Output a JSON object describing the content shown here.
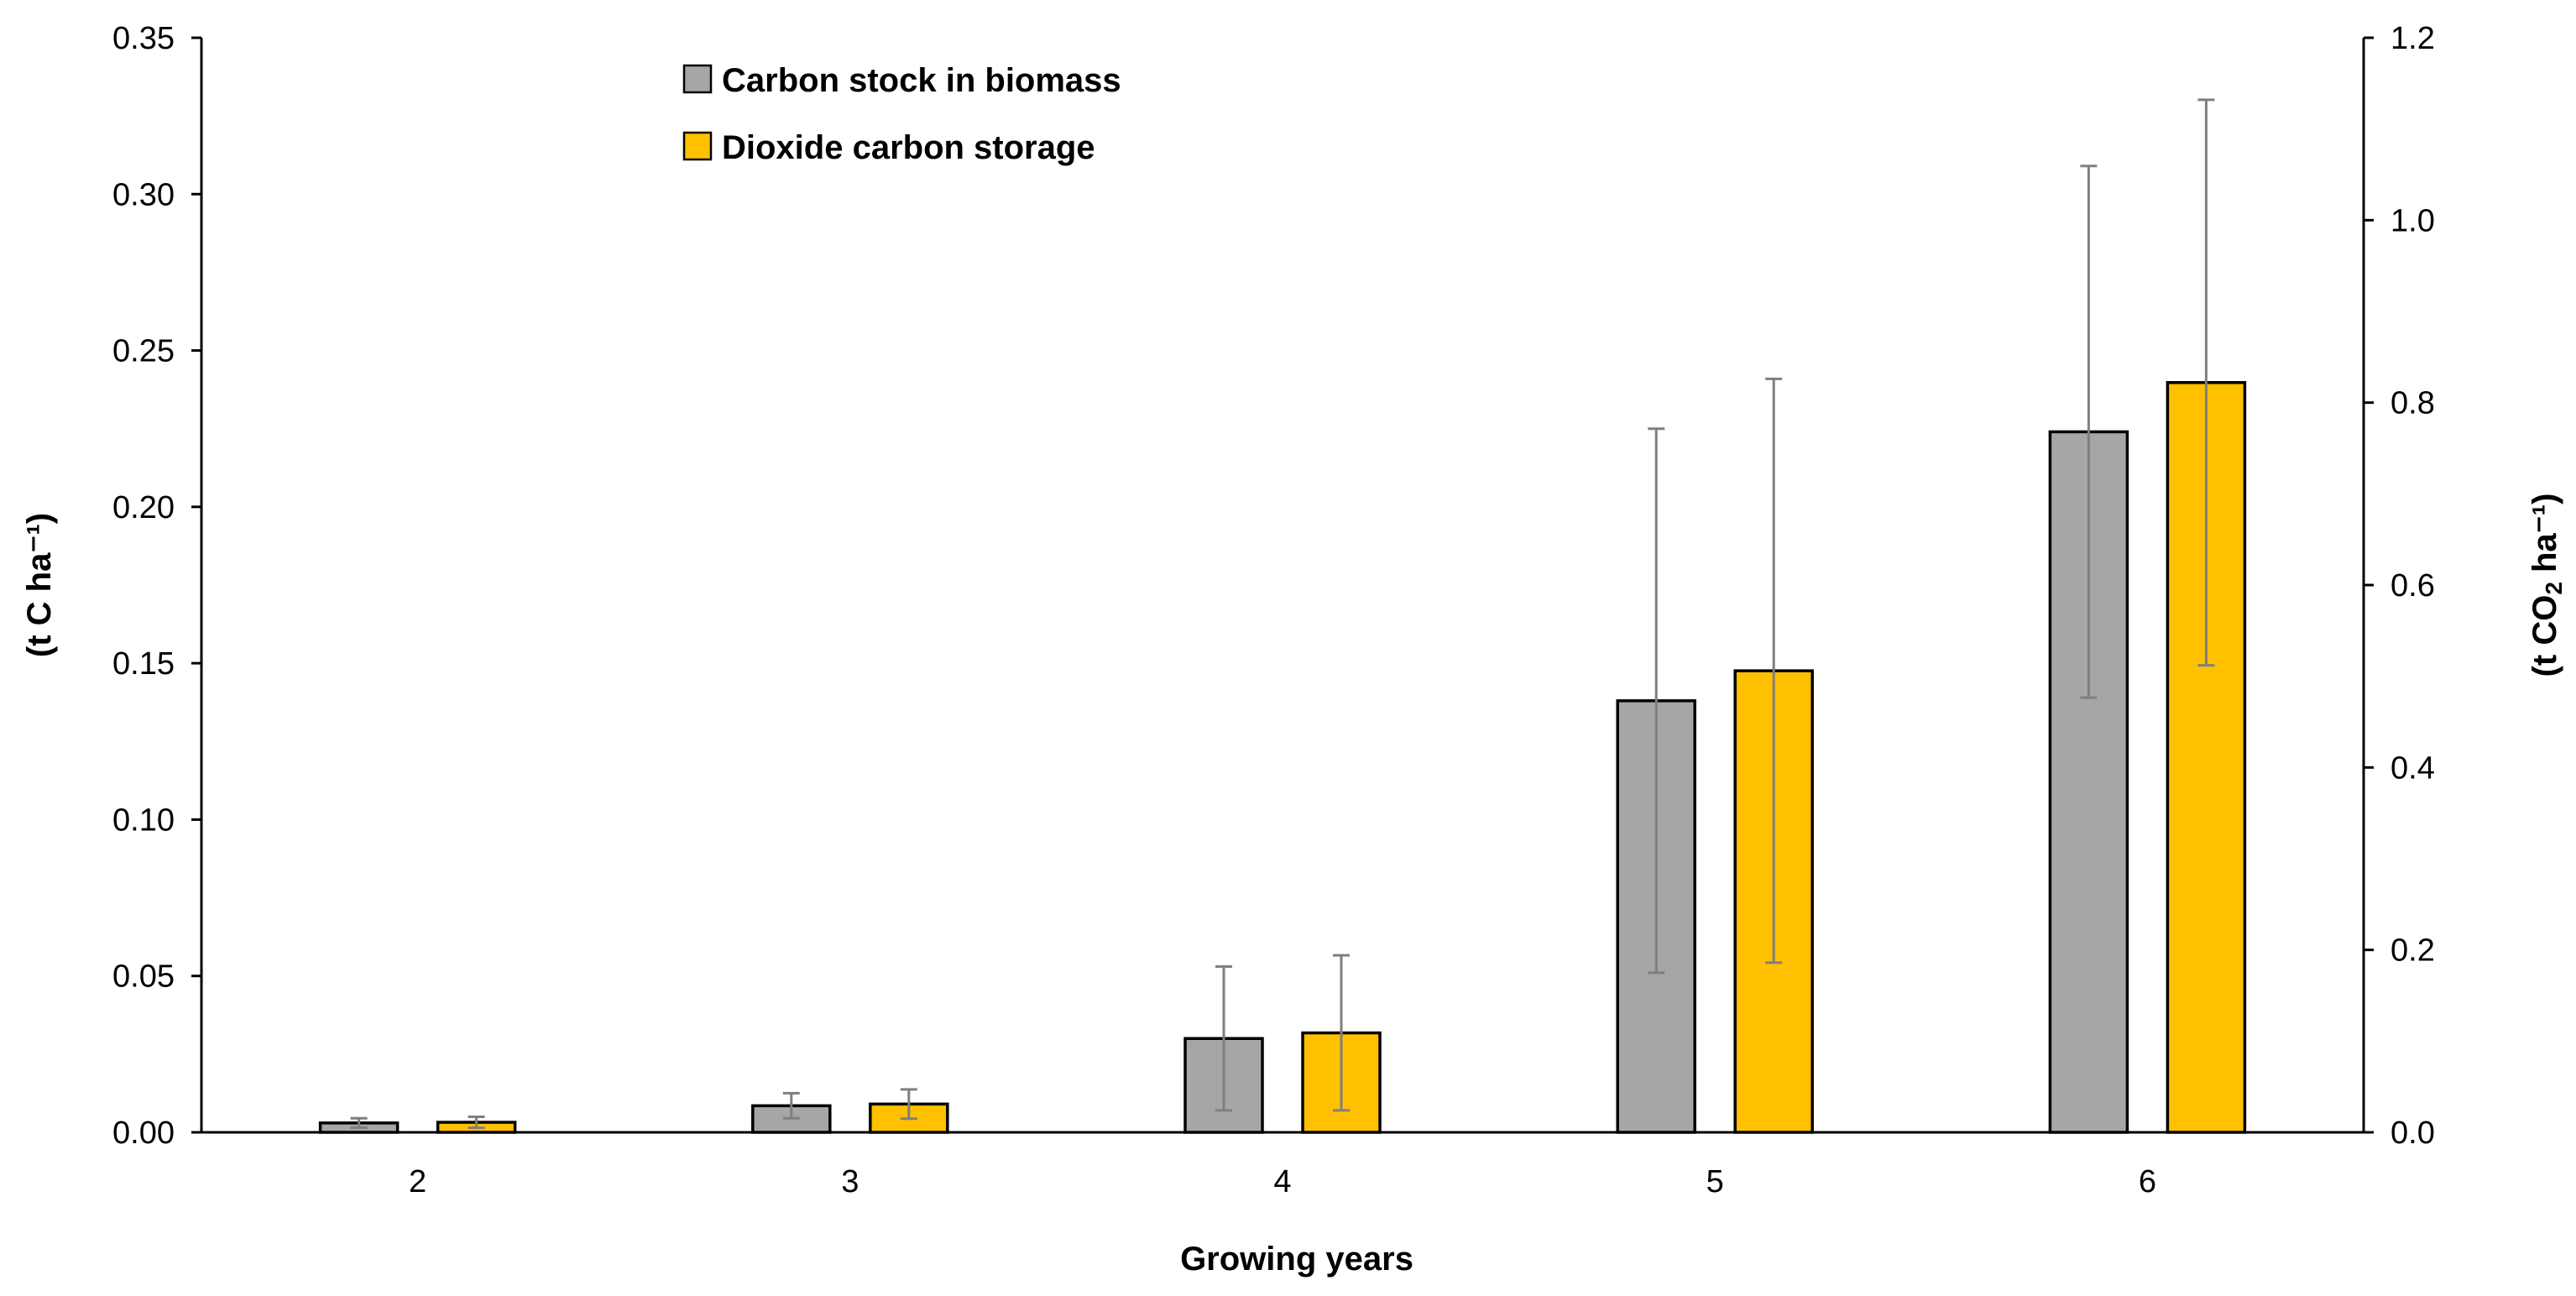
{
  "chart_data": {
    "type": "bar",
    "categories": [
      "2",
      "3",
      "4",
      "5",
      "6"
    ],
    "xlabel": "Growing years",
    "ylabel_left": "(t C ha⁻¹)",
    "ylabel_right_parts": {
      "pre": "(t CO",
      "sub": "2",
      "post": " ha⁻¹)"
    },
    "ylim_left": [
      0,
      0.35
    ],
    "ylim_right": [
      0,
      1.2
    ],
    "yticks_left": [
      "0.00",
      "0.05",
      "0.10",
      "0.15",
      "0.20",
      "0.25",
      "0.30",
      "0.35"
    ],
    "yticks_right": [
      "0.0",
      "0.2",
      "0.4",
      "0.6",
      "0.8",
      "1.0",
      "1.2"
    ],
    "grid": false,
    "legend_position": "top-left",
    "series": [
      {
        "name": "Carbon stock in biomass",
        "axis": "left",
        "color": "#a6a6a6",
        "values": [
          0.003,
          0.0085,
          0.03,
          0.138,
          0.224
        ],
        "error": [
          0.0015,
          0.004,
          0.023,
          0.087,
          0.085
        ]
      },
      {
        "name": "Dioxide carbon storage",
        "axis": "right",
        "color": "#ffc000",
        "values": [
          0.011,
          0.031,
          0.109,
          0.506,
          0.822
        ],
        "error": [
          0.006,
          0.016,
          0.085,
          0.32,
          0.31
        ]
      }
    ]
  }
}
